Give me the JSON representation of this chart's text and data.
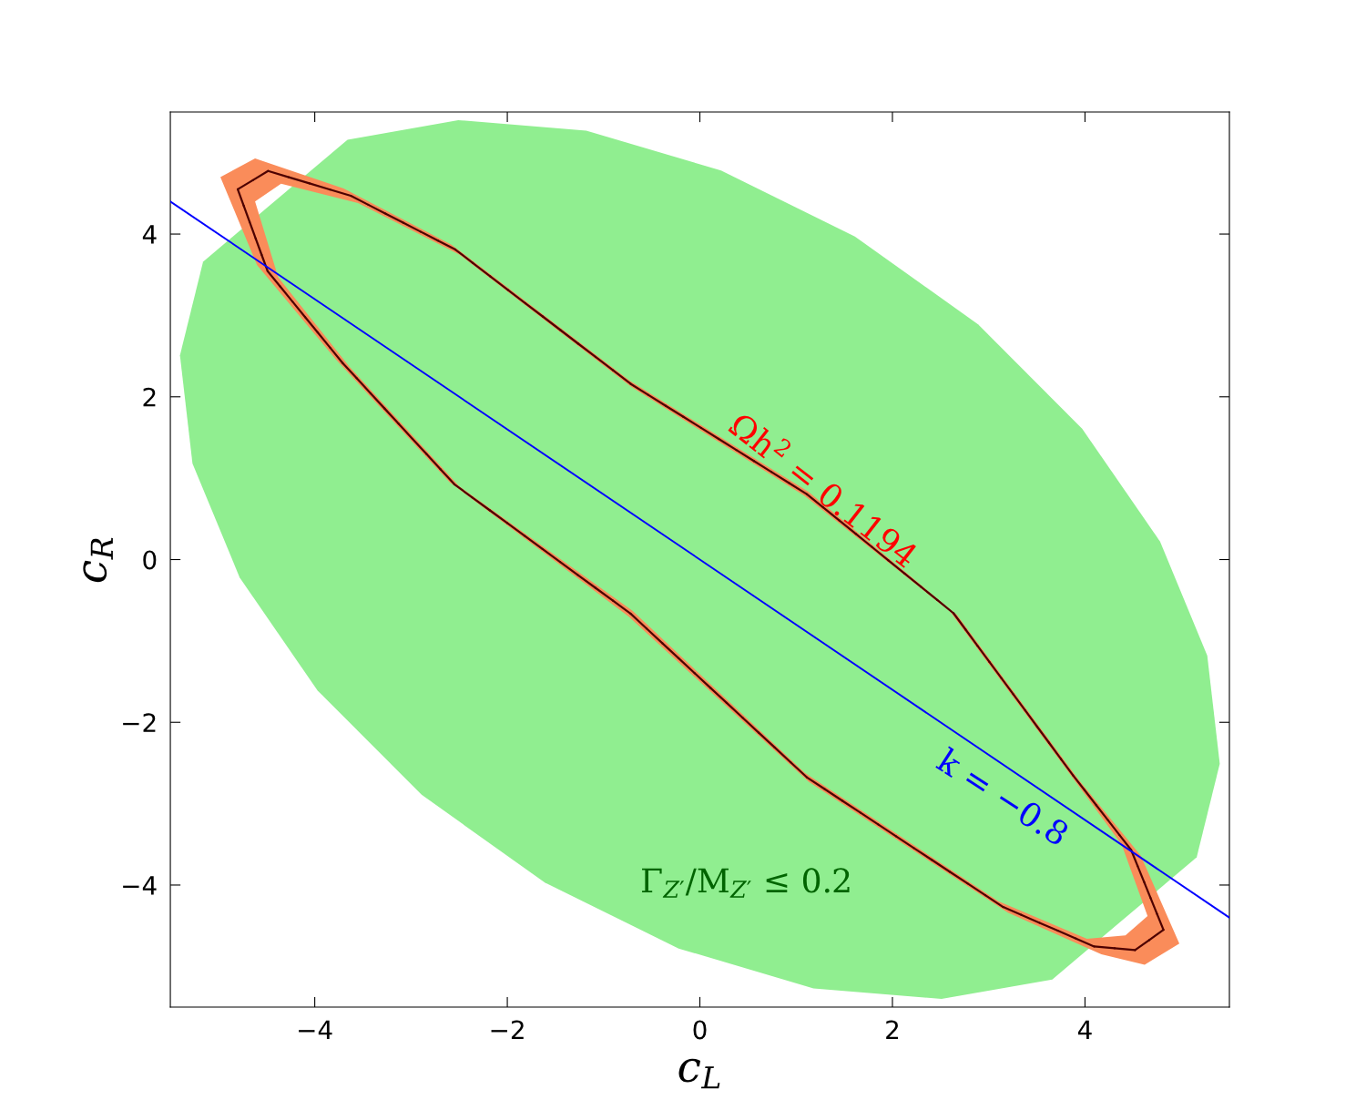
{
  "chart_data": {
    "type": "line",
    "xlabel": "c$_{L}$",
    "ylabel": "c$_{R}$",
    "xlim": [
      -5.5,
      5.5
    ],
    "ylim": [
      -5.5,
      5.5
    ],
    "xticks": [
      {
        "value": -4,
        "label": "−4"
      },
      {
        "value": -2,
        "label": "−2"
      },
      0,
      2,
      4
    ],
    "yticks": [
      {
        "value": -4,
        "label": "−4"
      },
      {
        "value": -2,
        "label": "−2"
      },
      0,
      2,
      4
    ],
    "grid": false,
    "legend": false,
    "series": [
      {
        "type": "area",
        "color": "#90ee90",
        "x": [
          5.16,
          5.4,
          5.27,
          4.78,
          3.97,
          2.89,
          1.61,
          0.22,
          -1.18,
          -2.51,
          -3.66,
          -5.16,
          -5.4,
          -5.27,
          -4.78,
          -3.97,
          -2.89,
          -1.61,
          -0.22,
          1.18,
          2.51,
          3.66
        ],
        "values": [
          -3.66,
          -2.51,
          -1.18,
          0.22,
          1.61,
          2.89,
          3.97,
          4.78,
          5.27,
          5.4,
          5.16,
          3.66,
          2.51,
          1.18,
          -0.22,
          -1.61,
          -2.89,
          -3.97,
          -4.78,
          -5.27,
          -5.4,
          -5.16
        ]
      },
      {
        "type": "area",
        "color": "#fa8c5a",
        "x": [
          -4.98,
          -4.62,
          -3.7,
          -2.58,
          -0.73,
          1.13,
          2.67,
          3.93,
          4.58,
          4.98,
          4.62,
          4.17,
          3.2,
          1.13,
          -0.74,
          -2.6,
          -3.78,
          -4.6,
          null,
          -4.38,
          -3.64,
          -2.5,
          -0.7,
          1.09,
          3.1,
          4.02,
          4.42,
          4.65,
          4.38,
          3.82,
          2.6,
          1.09,
          -0.71,
          -2.5,
          -3.55,
          -4.35,
          -4.62
        ],
        "values": [
          4.7,
          4.93,
          4.56,
          3.87,
          2.2,
          0.83,
          -0.68,
          -2.7,
          -3.64,
          -4.72,
          -4.98,
          -4.85,
          -4.34,
          -2.73,
          -0.7,
          0.95,
          2.46,
          3.62,
          null,
          3.47,
          2.37,
          0.9,
          -0.63,
          -2.62,
          -4.2,
          -4.66,
          -4.62,
          -4.38,
          -3.5,
          -2.6,
          -0.64,
          0.78,
          2.12,
          3.75,
          4.38,
          4.62,
          4.4
        ]
      },
      {
        "color": "#0000ff",
        "x": [
          -5.5,
          5.5
        ],
        "values": [
          4.4,
          -4.4
        ]
      }
    ],
    "annotations": [
      "Ωh$^{2}$ = 0.1194",
      "k = −0.8",
      "Γ$_{Z′}$/M$_{Z′}$ ≤ 0.2"
    ]
  }
}
